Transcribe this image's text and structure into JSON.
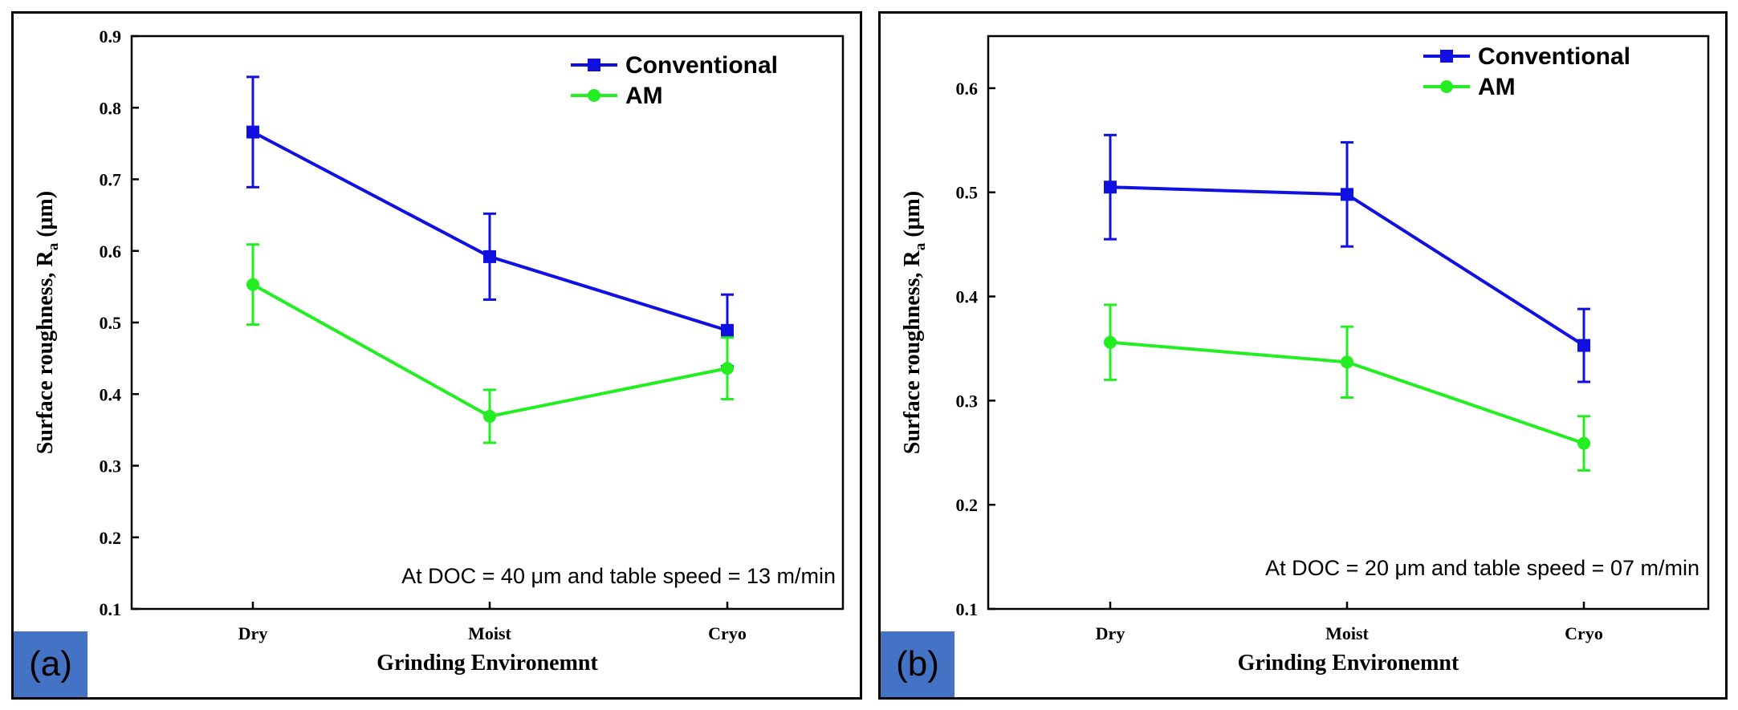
{
  "chart_data": [
    {
      "type": "line",
      "panel_label": "(a)",
      "categories": [
        "Dry",
        "Moist",
        "Cryo"
      ],
      "series": [
        {
          "name": "Conventional",
          "color": "#1010e0",
          "marker": "square",
          "values": [
            0.766,
            0.592,
            0.489
          ],
          "errors": [
            0.077,
            0.06,
            0.05
          ]
        },
        {
          "name": "AM",
          "color": "#22ee22",
          "marker": "circle",
          "values": [
            0.553,
            0.369,
            0.436
          ],
          "errors": [
            0.056,
            0.037,
            0.043
          ]
        }
      ],
      "xlabel": "Grinding Environemnt",
      "ylabel_main": "Surface roughness, R",
      "ylabel_sub": "a",
      "ylabel_unit": " (μm)",
      "ylim": [
        0.1,
        0.9
      ],
      "yticks": [
        "0.1",
        "0.2",
        "0.3",
        "0.4",
        "0.5",
        "0.6",
        "0.7",
        "0.8",
        "0.9"
      ],
      "annotation": "At DOC = 40 μm and table speed = 13 m/min",
      "legend_position": "top-right"
    },
    {
      "type": "line",
      "panel_label": "(b)",
      "categories": [
        "Dry",
        "Moist",
        "Cryo"
      ],
      "series": [
        {
          "name": "Conventional",
          "color": "#1010e0",
          "marker": "square",
          "values": [
            0.505,
            0.498,
            0.353
          ],
          "errors": [
            0.05,
            0.05,
            0.035
          ]
        },
        {
          "name": "AM",
          "color": "#22ee22",
          "marker": "circle",
          "values": [
            0.356,
            0.337,
            0.259
          ],
          "errors": [
            0.036,
            0.034,
            0.026
          ]
        }
      ],
      "xlabel": "Grinding Environemnt",
      "ylabel_main": "Surface roughness, R",
      "ylabel_sub": "a",
      "ylabel_unit": " (μm)",
      "ylim": [
        0.1,
        0.65
      ],
      "yticks": [
        "0.1",
        "0.2",
        "0.3",
        "0.4",
        "0.5",
        "0.6"
      ],
      "annotation": "At DOC = 20 μm and table speed = 07 m/min",
      "legend_position": "top-right"
    }
  ]
}
